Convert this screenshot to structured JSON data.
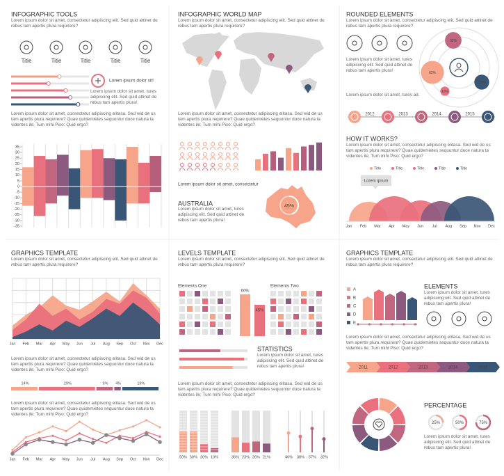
{
  "tools": {
    "title": "INFOGRAPHIC TOOLS",
    "intro": "Lorem ipsum dolor sit amet, consectetur adipiscing elit. Sed quid attinet de rebus tam apertis plura requirere?",
    "icon_labels": [
      "Title",
      "Title",
      "Title",
      "Title",
      "Title"
    ],
    "sliders": {
      "values": [
        62,
        48,
        70,
        76,
        86
      ],
      "colors": [
        "#f19c85",
        "#e9707d",
        "#e9707d",
        "#b65f7d",
        "#3a5676"
      ]
    },
    "add_label": "Lorem ipsum dolor sit!",
    "add_text": "Lorem ipsum dolor sit amet, tures adipiscing elit. Sed quid attinet de rebus tam apertis plura!",
    "paragraph": "Lorem ipsum dolor sit amet, consectetur adipiscing elitasa. Sed wid de us tam apertis plura requirere? Quae quidemietes sequuntur duce natura ta videntes ile; Tum mihi Piso: Quid ergo?",
    "chart": {
      "type": "floating-bar",
      "ylim": [
        -35,
        35
      ],
      "yticks": [
        35,
        30,
        25,
        20,
        15,
        10,
        5,
        0,
        -5,
        -10,
        -15,
        -20,
        -25,
        -30,
        -35
      ],
      "lows": [
        -17,
        -26,
        -15,
        -8,
        -20,
        -10,
        -10,
        -12,
        -30,
        -15,
        -15,
        -5
      ],
      "highs": [
        17,
        27,
        24,
        28,
        16,
        32,
        33,
        25,
        24,
        35,
        21,
        27
      ],
      "colors": [
        "#f6a58a",
        "#e9707d",
        "#c0667f",
        "#8d5a7f",
        "#3a5676",
        "#f6a58a",
        "#e9707d",
        "#8d5a7f",
        "#3a5676",
        "#f6a58a",
        "#e9707d",
        "#b65f7d"
      ]
    }
  },
  "world": {
    "title": "INFOGRAPHIC WORLD MAP",
    "intro": "Lorem ipsum dolor sit amet, consectetur adipiscing elit. Sed quid attinet de rebus tam apertis plura requirere?",
    "paragraph": "Lorem ipsum dolor sit amet, consectetur adipiscing elitasa. Sed wid de us tam apertis plura requirere? Quae quidemietes sequuntur duce natura ta videntes ile; Tum mihi Piso: Quid ergo?",
    "bars": {
      "type": "bar",
      "values": [
        14,
        21,
        24,
        16,
        28,
        22,
        30,
        32,
        35
      ],
      "colors": [
        "#f6a58a",
        "#e9707d",
        "#b65f7d",
        "#8d5a7f",
        "#f6a58a",
        "#e9707d",
        "#b65f7d",
        "#8d5a7f",
        "#8d5a7f"
      ]
    },
    "caption": "Lorem ipsum dolor sit amet, consectetur",
    "australia": "AUSTRALIA",
    "australia_text": "Lorem ipsum dolor sit amet, tures adipiscing elit. Sed quid attinet de rebus tam apertis plura!",
    "share": {
      "values": [
        45
      ],
      "value_labels": [
        "45%"
      ]
    }
  },
  "rounded": {
    "title": "ROUNDED ELEMENTS",
    "intro": "Lorem ipsum dolor sit amet, consectetur adipiscing elit. Sed quid attinet de rebus tam apertis plura requirere?",
    "text": "Lorem ipsum dolor sit amet, tures adipiscing elit. Sed quid attinet de rebus tam apertis plura!",
    "short_text": "Lorem ipsum dolor sit amet, tures ad.",
    "bubbles": {
      "values": [
        32,
        62,
        10,
        26
      ],
      "value_labels": [
        "32%",
        "62%",
        "10%",
        "26%"
      ],
      "colors": [
        "#c0667f",
        "#f6a58a",
        "#e9707d",
        "#3a5676"
      ]
    },
    "years": [
      "2012",
      "2013",
      "2014",
      "2015"
    ],
    "how_title": "HOW IT WORKS?",
    "how_text": "Lorem ipsum dolor sit amet, consectetur adipiscing elitasa. Sed wid de us tam apertis plura requirere? Quae quidemietes sequuntur duce natura ta videntes ile; Tum mihi Piso: Quid ergo?",
    "bubble_note": "Lorem ipsum",
    "chart": {
      "type": "semicircle",
      "series": [
        {
          "name": "Title",
          "color": "#f6a58a",
          "value": 28
        },
        {
          "name": "Title",
          "color": "#e9707d",
          "value": 36
        },
        {
          "name": "Title",
          "color": "#e9707d",
          "value": 30
        },
        {
          "name": "Title",
          "color": "#8d5a7f",
          "value": 29
        },
        {
          "name": "Title",
          "color": "#3a5676",
          "value": 36
        }
      ],
      "categories": [
        "Jan",
        "Feb",
        "Mar",
        "Apr",
        "May",
        "Jun",
        "Jul",
        "Aug",
        "Sep",
        "Nov",
        "Dec"
      ]
    }
  },
  "graphics": {
    "title": "GRAPHICS TEMPLATE",
    "intro": "Lorem ipsum dolor sit amet, consectetur adipiscing elit. Sed quid attinet de rebus tam apertis plura requirere?",
    "area": {
      "type": "area",
      "categories": [
        "Jan",
        "Feb",
        "Mar",
        "Apr",
        "May",
        "Jun",
        "Jul",
        "Aug",
        "Sep",
        "Oct",
        "Nov",
        "Dec"
      ],
      "series": [
        {
          "color": "#f6a58a",
          "values": [
            22,
            40,
            52,
            72,
            55,
            48,
            62,
            78,
            62,
            92,
            72,
            50
          ]
        },
        {
          "color": "#e9707d",
          "values": [
            15,
            32,
            58,
            38,
            50,
            32,
            45,
            66,
            58,
            80,
            68,
            42
          ]
        },
        {
          "color": "#3a5676",
          "values": [
            3,
            12,
            24,
            14,
            30,
            20,
            34,
            50,
            38,
            60,
            44,
            24
          ]
        }
      ]
    },
    "paragraph": "Lorem ipsum dolor sit amet, consectetur adipiscing elitasa. Sed wid de us tam apertis plura requirere? Quae quidemietes sequuntur duce natura ta videntes ile; Tum mihi Piso: Quid ergo?",
    "segments": {
      "values": [
        14,
        29,
        9,
        4,
        19
      ],
      "value_labels": [
        "14%",
        "29%",
        "9%",
        "4%",
        "19%"
      ],
      "colors": [
        "#f6a58a",
        "#e9707d",
        "#c0667f",
        "#8d5a7f",
        "#3a5676"
      ]
    },
    "paragraph2": "Lorem ipsum dolor sit amet, consectetur adipiscing elitasa. Sed wid de us tam apertis plura requirere? Quae quidemietes sequuntur duce natura ta videntes ile; Tum mihi Piso: Quid ergo?",
    "line": {
      "type": "line",
      "categories": [
        "Jan",
        "Feb",
        "Mar",
        "Apr",
        "May",
        "Jun",
        "Jul",
        "Aug",
        "Sep",
        "Oct",
        "Nov",
        "Dec"
      ],
      "series": [
        {
          "color": "#f6a58a",
          "values": [
            10,
            42,
            55,
            70,
            58,
            82,
            62,
            48,
            60,
            70,
            86,
            68
          ]
        },
        {
          "color": "#e9707d",
          "values": [
            4,
            30,
            40,
            46,
            34,
            52,
            38,
            28,
            46,
            40,
            56,
            44
          ]
        },
        {
          "color": "#8d5a7f",
          "values": [
            0,
            24,
            36,
            30,
            24,
            36,
            28,
            48,
            40,
            33,
            50,
            30
          ]
        }
      ]
    }
  },
  "levels": {
    "title": "LEVELS TEMPLATE",
    "intro": "Lorem ipsum dolor sit amet, consectetur adipiscing elit. Sed quid attinet de rebus tam apertis plura requirere?",
    "elements_one": "Elements One",
    "elements_two": "Elements Two",
    "level_bars": {
      "values": [
        60,
        45
      ],
      "value_labels": [
        "60%",
        "45%"
      ],
      "colors": [
        "#f6a58a",
        "#e9707d"
      ]
    },
    "progress": {
      "values": [
        60,
        95,
        78
      ],
      "colors": [
        "#c0667f",
        "#e9707d",
        "#f6a58a"
      ]
    },
    "statistics": "STATISTICS",
    "statistics_text": "Lorem ipsum dolor sit amet, tures adipiscing elit. Sed quid attinet de rebus tam apertis plura!",
    "paragraph": "Lorem ipsum dolor sit amet, consectetur adipiscing elitasa. Sed wid de us tam apertis plura requirere? Quae quidemietes sequuntur duce natura ta videntes ile; Tum mihi Piso: Quid ergo?",
    "groups": [
      {
        "values": [
          50,
          50,
          20,
          10
        ],
        "value_labels": [
          "50%",
          "50%",
          "20%",
          "10%"
        ],
        "colors": [
          "#f6a58a",
          "#f6a58a",
          "#e9707d",
          "#c0667f"
        ]
      },
      {
        "values": [
          36,
          23,
          26,
          21
        ],
        "value_labels": [
          "36%",
          "23%",
          "26%",
          "21%"
        ],
        "colors": [
          "#f6a58a",
          "#e9707d",
          "#c0667f",
          "#8d5a7f"
        ]
      },
      {
        "values": [
          46,
          38,
          57,
          32
        ],
        "value_labels": [
          "46%",
          "38%",
          "57%",
          "32%"
        ],
        "colors": [
          "#f6a58a",
          "#e9707d",
          "#c0667f",
          "#8d5a7f"
        ]
      }
    ]
  },
  "graphics2": {
    "title": "GRAPHICS TEMPLATE",
    "intro": "Lorem ipsum dolor sit amet, consectetur adipiscing elit. Sed quid attinet de rebus tam apertis plura requirere?",
    "chart": {
      "type": "arrow-bar",
      "series": [
        {
          "name": "A",
          "color": "#f6a58a",
          "value": 34
        },
        {
          "name": "B",
          "color": "#e9707d",
          "value": 44
        },
        {
          "name": "C",
          "color": "#c0667f",
          "value": 38
        },
        {
          "name": "D",
          "color": "#8d5a7f",
          "value": 42
        },
        {
          "name": "E",
          "color": "#3a5676",
          "value": 33
        }
      ]
    },
    "elements": "ELEMENTS",
    "elements_text": "Lorem ipsum dolor sit amet, tures adipiscing elit. Sed quid attinet de rebus tam apertis plura!",
    "paragraph": "Lorem ipsum dolor sit amet, consectetur adipiscing elitasa. Sed wid de us tam apertis plura requirere? Quae quidemietes sequuntur duce natura ta videntes ile; Tum mihi Piso: Quid ergo?",
    "years": [
      "2011",
      "2012",
      "2013",
      "2014",
      "2015"
    ],
    "year_colors": [
      "#f6a58a",
      "#e9707d",
      "#c0667f",
      "#8d5a7f",
      "#3a5676"
    ],
    "percentage": "PERCENTAGE",
    "percent_rings": {
      "values": [
        25,
        50,
        75
      ],
      "value_labels": [
        "25%",
        "50%",
        "75%"
      ],
      "colors": [
        "#f6a58a",
        "#e9707d",
        "#c0667f"
      ]
    },
    "percentage_text": "Lorem ipsum dolor sit amet, tures adipiscing elit. Sed quid attinet de rebus tam apertis plura!"
  }
}
